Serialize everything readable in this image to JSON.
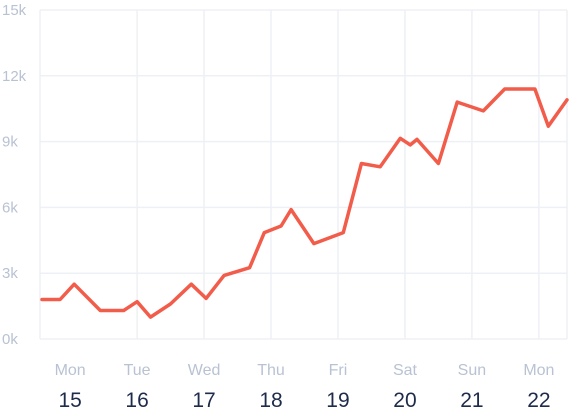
{
  "chart_data": {
    "type": "line",
    "title": "",
    "xlabel": "",
    "ylabel": "",
    "ylim": [
      0,
      15000
    ],
    "yticks": [
      {
        "value": 0,
        "label": "0k"
      },
      {
        "value": 3000,
        "label": "3k"
      },
      {
        "value": 6000,
        "label": "6k"
      },
      {
        "value": 9000,
        "label": "9k"
      },
      {
        "value": 12000,
        "label": "12k"
      },
      {
        "value": 15000,
        "label": "15k"
      }
    ],
    "xlim": [
      14.55,
      22.42
    ],
    "xticks": [
      {
        "value": 15,
        "day": "Mon",
        "date": "15"
      },
      {
        "value": 16,
        "day": "Tue",
        "date": "16"
      },
      {
        "value": 17,
        "day": "Wed",
        "date": "17"
      },
      {
        "value": 18,
        "day": "Thu",
        "date": "18"
      },
      {
        "value": 19,
        "day": "Fri",
        "date": "19"
      },
      {
        "value": 20,
        "day": "Sat",
        "date": "20"
      },
      {
        "value": 21,
        "day": "Sun",
        "date": "21"
      },
      {
        "value": 22,
        "day": "Mon",
        "date": "22"
      }
    ],
    "grid": true,
    "colors": {
      "line": "#f25c4a",
      "grid": "#edf0f5"
    },
    "series": [
      {
        "values": [
          {
            "x": 14.58,
            "y": 1800
          },
          {
            "x": 14.85,
            "y": 1800
          },
          {
            "x": 15.06,
            "y": 2500
          },
          {
            "x": 15.45,
            "y": 1300
          },
          {
            "x": 15.8,
            "y": 1300
          },
          {
            "x": 16.0,
            "y": 1700
          },
          {
            "x": 16.2,
            "y": 1000
          },
          {
            "x": 16.5,
            "y": 1600
          },
          {
            "x": 16.81,
            "y": 2500
          },
          {
            "x": 17.03,
            "y": 1850
          },
          {
            "x": 17.3,
            "y": 2900
          },
          {
            "x": 17.68,
            "y": 3250
          },
          {
            "x": 17.9,
            "y": 4850
          },
          {
            "x": 18.15,
            "y": 5150
          },
          {
            "x": 18.3,
            "y": 5900
          },
          {
            "x": 18.64,
            "y": 4350
          },
          {
            "x": 19.08,
            "y": 4850
          },
          {
            "x": 19.35,
            "y": 8000
          },
          {
            "x": 19.63,
            "y": 7850
          },
          {
            "x": 19.93,
            "y": 9150
          },
          {
            "x": 20.08,
            "y": 8850
          },
          {
            "x": 20.18,
            "y": 9100
          },
          {
            "x": 20.5,
            "y": 8000
          },
          {
            "x": 20.78,
            "y": 10800
          },
          {
            "x": 21.17,
            "y": 10400
          },
          {
            "x": 21.49,
            "y": 11400
          },
          {
            "x": 21.94,
            "y": 11400
          },
          {
            "x": 22.14,
            "y": 9700
          },
          {
            "x": 22.42,
            "y": 10900
          }
        ]
      }
    ]
  }
}
